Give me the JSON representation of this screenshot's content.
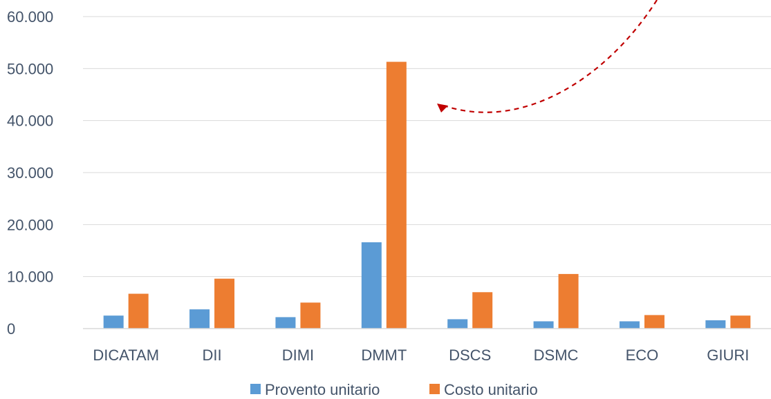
{
  "chart_data": {
    "type": "bar",
    "categories": [
      "DICATAM",
      "DII",
      "DIMI",
      "DMMT",
      "DSCS",
      "DSMC",
      "ECO",
      "GIURI"
    ],
    "series": [
      {
        "name": "Provento unitario",
        "color": "#5B9BD5",
        "values": [
          2500,
          3700,
          2200,
          16600,
          1800,
          1400,
          1400,
          1600
        ]
      },
      {
        "name": "Costo unitario",
        "color": "#ED7D31",
        "values": [
          6700,
          9600,
          5000,
          51300,
          7000,
          10500,
          2600,
          2500
        ]
      }
    ],
    "title": "",
    "xlabel": "",
    "ylabel": "",
    "ylim": [
      0,
      60000
    ],
    "yticks": [
      0,
      10000,
      20000,
      30000,
      40000,
      50000,
      60000
    ],
    "ytick_labels": [
      "0",
      "10.000",
      "20.000",
      "30.000",
      "40.000",
      "50.000",
      "60.000"
    ],
    "grid": true,
    "legend_position": "bottom",
    "annotation": {
      "type": "dashed-arrow",
      "color": "#C00000"
    }
  }
}
